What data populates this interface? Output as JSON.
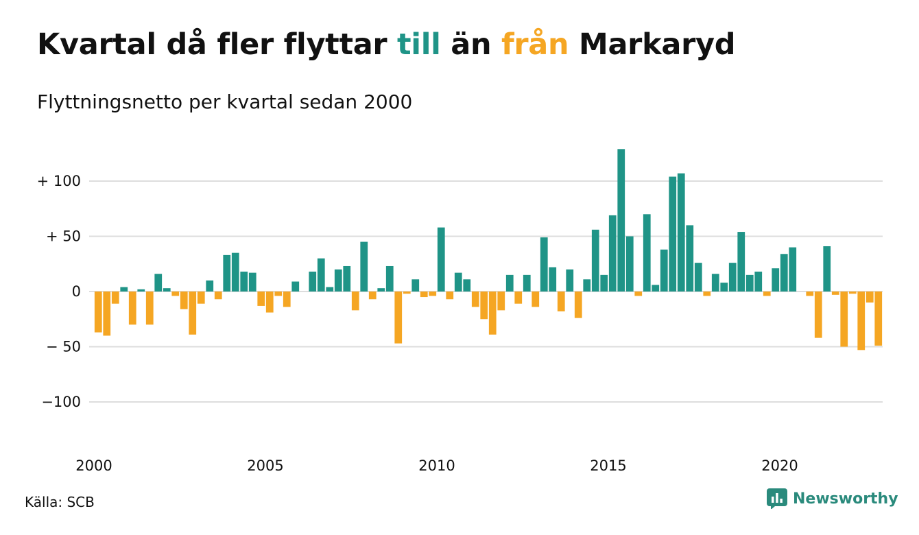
{
  "title": {
    "part1": "Kvartal då fler flyttar ",
    "highlight_in": "till",
    "part2": " än ",
    "highlight_out": "från",
    "part3": " Markaryd"
  },
  "subtitle": "Flyttningsnetto per kvartal sedan 2000",
  "source": "Källa: SCB",
  "brand": {
    "name": "Newsworthy",
    "icon": "newsworthy-logo-icon"
  },
  "colors": {
    "positive": "#1f9487",
    "negative": "#f5a623",
    "grid": "#dddddd",
    "brand": "#2a8a7c"
  },
  "chart_data": {
    "type": "bar",
    "x_start": "2000 Q1",
    "x_tick_labels": [
      "2000",
      "2005",
      "2010",
      "2015",
      "2020"
    ],
    "y_tick_labels": [
      "+ 100",
      "+  50",
      "0",
      "− 50",
      "−100"
    ],
    "y_ticks": [
      100,
      50,
      0,
      -50,
      -100
    ],
    "ylim": [
      -135,
      135
    ],
    "grid": true,
    "legend": "none",
    "values": [
      -37,
      -40,
      -11,
      4,
      -30,
      2,
      -30,
      16,
      3,
      -4,
      -16,
      -39,
      -11,
      10,
      -7,
      33,
      35,
      18,
      17,
      -13,
      -19,
      -4,
      -14,
      9,
      0,
      18,
      30,
      4,
      20,
      23,
      -17,
      45,
      -7,
      3,
      23,
      -47,
      -2,
      11,
      -5,
      -4,
      58,
      -7,
      17,
      11,
      -14,
      -25,
      -39,
      -17,
      15,
      -11,
      15,
      -14,
      49,
      22,
      -18,
      20,
      -24,
      11,
      56,
      15,
      69,
      129,
      50,
      -4,
      70,
      6,
      38,
      104,
      107,
      60,
      26,
      -4,
      16,
      8,
      26,
      54,
      15,
      18,
      -4,
      21,
      34,
      40,
      0,
      -4,
      -42,
      41,
      -3,
      -50,
      -2,
      -53,
      -10,
      -49
    ]
  }
}
